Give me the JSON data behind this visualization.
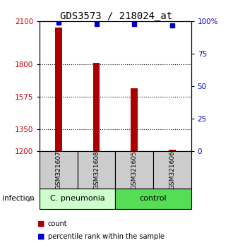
{
  "title": "GDS3573 / 218024_at",
  "samples": [
    "GSM321607",
    "GSM321608",
    "GSM321605",
    "GSM321606"
  ],
  "bar_values": [
    2055,
    1812,
    1635,
    1213
  ],
  "percentile_values": [
    99,
    98,
    98,
    97
  ],
  "bar_color": "#aa0000",
  "percentile_color": "#0000cc",
  "ylim_left": [
    1200,
    2100
  ],
  "ylim_right": [
    0,
    100
  ],
  "yticks_left": [
    1200,
    1350,
    1575,
    1800,
    2100
  ],
  "yticks_right": [
    0,
    25,
    50,
    75,
    100
  ],
  "grid_values": [
    1350,
    1575,
    1800
  ],
  "groups": [
    {
      "label": "C. pneumonia",
      "indices": [
        0,
        1
      ],
      "color": "#ccffcc"
    },
    {
      "label": "control",
      "indices": [
        2,
        3
      ],
      "color": "#55dd55"
    }
  ],
  "group_label_prefix": "infection",
  "legend_items": [
    {
      "color": "#aa0000",
      "label": "count"
    },
    {
      "color": "#0000cc",
      "label": "percentile rank within the sample"
    }
  ],
  "bar_width": 0.18,
  "sample_box_color": "#cccccc",
  "title_fontsize": 10,
  "axis_label_color_left": "#cc0000",
  "axis_label_color_right": "#0000cc"
}
